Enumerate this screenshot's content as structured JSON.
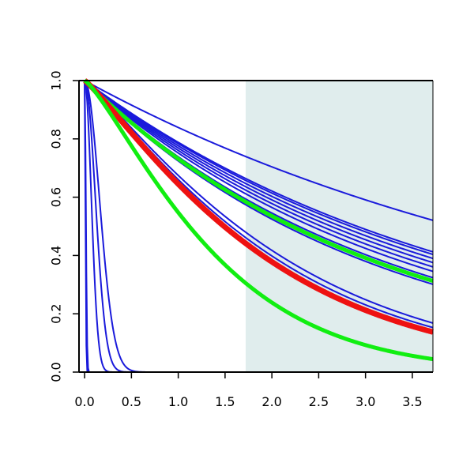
{
  "chart_data": {
    "type": "line",
    "title": "",
    "xlabel": "",
    "ylabel": "",
    "xlim": [
      -0.06,
      3.72
    ],
    "ylim": [
      0,
      1
    ],
    "grid": false,
    "legend": "none",
    "x_ticks": [
      0,
      0.5,
      1,
      1.5,
      2,
      2.5,
      3,
      3.5
    ],
    "x_tick_labels": [
      "0.0",
      "0.5",
      "1.0",
      "1.5",
      "2.0",
      "2.5",
      "3.0",
      "3.5"
    ],
    "y_ticks": [
      0,
      0.2,
      0.4,
      0.6,
      0.8,
      1
    ],
    "y_tick_labels": [
      "0.0",
      "0.2",
      "0.4",
      "0.6",
      "0.8",
      "1.0"
    ],
    "shaded_region": {
      "x_from": 1.72,
      "x_to": 3.72,
      "color": "#e0eded"
    },
    "series_colors": {
      "blue": "#1a1adb",
      "red": "#ee1111",
      "green": "#11ee11"
    },
    "series": [
      {
        "color": "blue",
        "shape": 1.0,
        "scale": 5.7,
        "width": 2
      },
      {
        "color": "blue",
        "shape": 1.0,
        "scale": 4.2,
        "width": 2
      },
      {
        "color": "blue",
        "shape": 1.0,
        "scale": 4.1,
        "width": 2
      },
      {
        "color": "blue",
        "shape": 1.0,
        "scale": 3.95,
        "width": 2
      },
      {
        "color": "blue",
        "shape": 1.0,
        "scale": 3.8,
        "width": 2
      },
      {
        "color": "blue",
        "shape": 1.0,
        "scale": 3.65,
        "width": 2
      },
      {
        "color": "blue",
        "shape": 1.0,
        "scale": 3.5,
        "width": 2
      },
      {
        "color": "blue",
        "shape": 1.0,
        "scale": 3.3,
        "width": 2
      },
      {
        "color": "blue",
        "shape": 1.0,
        "scale": 3.1,
        "width": 2
      },
      {
        "color": "blue",
        "shape": 1.15,
        "scale": 2.25,
        "width": 2
      },
      {
        "color": "blue",
        "shape": 1.15,
        "scale": 2.15,
        "width": 2
      },
      {
        "color": "blue",
        "shape": 2.0,
        "scale": 0.22,
        "width": 2
      },
      {
        "color": "blue",
        "shape": 2.0,
        "scale": 0.16,
        "width": 2
      },
      {
        "color": "blue",
        "shape": 2.0,
        "scale": 0.1,
        "width": 2
      },
      {
        "color": "blue",
        "shape": 2.0,
        "scale": 0.018,
        "width": 2
      },
      {
        "color": "blue",
        "shape": 2.0,
        "scale": 0.012,
        "width": 2
      },
      {
        "color": "green",
        "shape": 1.0,
        "scale": 3.2,
        "width": 5
      },
      {
        "color": "red",
        "shape": 1.15,
        "scale": 2.05,
        "width": 7
      },
      {
        "color": "green",
        "shape": 1.25,
        "scale": 1.5,
        "width": 5
      }
    ]
  }
}
